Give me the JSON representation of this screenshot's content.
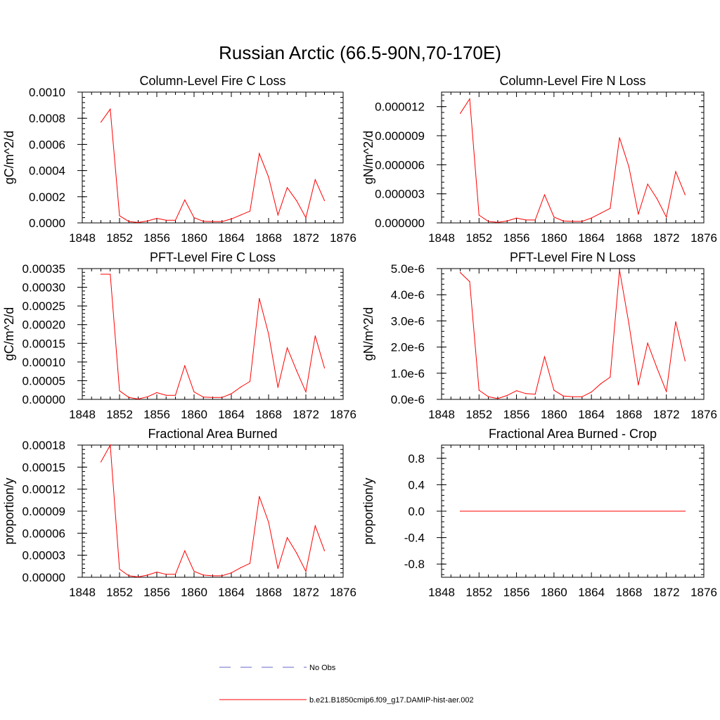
{
  "figure": {
    "title": "Russian Arctic (66.5-90N,70-170E)"
  },
  "legend": {
    "entries": [
      {
        "label": "No Obs",
        "color": "#6666cc",
        "style": "dashed"
      },
      {
        "label": "b.e21.B1850cmip6.f09_g17.DAMIP-hist-aer.002",
        "color": "#ff0000",
        "style": "solid"
      }
    ]
  },
  "chart_data": [
    {
      "type": "line",
      "title": "Column-Level Fire C Loss",
      "ylabel": "gC/m^2/d",
      "xlim": [
        1848,
        1876
      ],
      "xticks": [
        "1848",
        "1852",
        "1856",
        "1860",
        "1864",
        "1868",
        "1872",
        "1876"
      ],
      "ylim": [
        0,
        0.001
      ],
      "yticks": [
        "0.0000",
        "0.0002",
        "0.0004",
        "0.0006",
        "0.0008",
        "0.0010"
      ],
      "series": [
        {
          "color": "#ff0000",
          "x": [
            1850,
            1851,
            1852,
            1853,
            1854,
            1855,
            1856,
            1857,
            1858,
            1859,
            1860,
            1861,
            1862,
            1863,
            1864,
            1865,
            1866,
            1867,
            1868,
            1869,
            1870,
            1871,
            1872,
            1873,
            1874
          ],
          "values": [
            0.00077,
            0.00087,
            5.5e-05,
            1e-05,
            3e-06,
            1.5e-05,
            3.5e-05,
            2e-05,
            2e-05,
            0.000175,
            4e-05,
            1.2e-05,
            1e-05,
            1e-05,
            3e-05,
            6e-05,
            9e-05,
            0.00053,
            0.00035,
            6e-05,
            0.00027,
            0.00017,
            4e-05,
            0.00033,
            0.00017
          ]
        }
      ]
    },
    {
      "type": "line",
      "title": "Column-Level Fire N Loss",
      "ylabel": "gN/m^2/d",
      "xlim": [
        1848,
        1876
      ],
      "xticks": [
        "1848",
        "1852",
        "1856",
        "1860",
        "1864",
        "1868",
        "1872",
        "1876"
      ],
      "ylim": [
        0,
        1.35e-05
      ],
      "yticks": [
        "0.000000",
        "0.000003",
        "0.000006",
        "0.000009",
        "0.000012"
      ],
      "series": [
        {
          "color": "#ff0000",
          "x": [
            1850,
            1851,
            1852,
            1853,
            1854,
            1855,
            1856,
            1857,
            1858,
            1859,
            1860,
            1861,
            1862,
            1863,
            1864,
            1865,
            1866,
            1867,
            1868,
            1869,
            1870,
            1871,
            1872,
            1873,
            1874
          ],
          "values": [
            1.13e-05,
            1.28e-05,
            8e-07,
            1.5e-07,
            5e-08,
            2e-07,
            5e-07,
            3e-07,
            3e-07,
            2.9e-06,
            6e-07,
            2e-07,
            1.5e-07,
            1.5e-07,
            5e-07,
            1e-06,
            1.5e-06,
            8.8e-06,
            5.8e-06,
            9e-07,
            4e-06,
            2.5e-06,
            6e-07,
            5.3e-06,
            2.9e-06
          ]
        }
      ]
    },
    {
      "type": "line",
      "title": "PFT-Level Fire C Loss",
      "ylabel": "gC/m^2/d",
      "xlim": [
        1848,
        1876
      ],
      "xticks": [
        "1848",
        "1852",
        "1856",
        "1860",
        "1864",
        "1868",
        "1872",
        "1876"
      ],
      "ylim": [
        0,
        0.00035
      ],
      "yticks": [
        "0.00000",
        "0.00005",
        "0.00010",
        "0.00015",
        "0.00020",
        "0.00025",
        "0.00030",
        "0.00035"
      ],
      "series": [
        {
          "color": "#ff0000",
          "x": [
            1850,
            1851,
            1852,
            1853,
            1854,
            1855,
            1856,
            1857,
            1858,
            1859,
            1860,
            1861,
            1862,
            1863,
            1864,
            1865,
            1866,
            1867,
            1868,
            1869,
            1870,
            1871,
            1872,
            1873,
            1874
          ],
          "values": [
            0.000335,
            0.000335,
            2.3e-05,
            5e-06,
            1e-06,
            7e-06,
            1.8e-05,
            1.1e-05,
            1.1e-05,
            9e-05,
            2e-05,
            6e-06,
            5e-06,
            5e-06,
            1.5e-05,
            3.3e-05,
            4.8e-05,
            0.00027,
            0.000175,
            3.2e-05,
            0.000138,
            7.7e-05,
            2e-05,
            0.00017,
            8.4e-05
          ]
        }
      ]
    },
    {
      "type": "line",
      "title": "PFT-Level Fire N Loss",
      "ylabel": "gN/m^2/d",
      "xlim": [
        1848,
        1876
      ],
      "xticks": [
        "1848",
        "1852",
        "1856",
        "1860",
        "1864",
        "1868",
        "1872",
        "1876"
      ],
      "ylim": [
        0,
        5e-06
      ],
      "yticks": [
        "0.0e-6",
        "1.0e-6",
        "2.0e-6",
        "3.0e-6",
        "4.0e-6",
        "5.0e-6"
      ],
      "series": [
        {
          "color": "#ff0000",
          "x": [
            1850,
            1851,
            1852,
            1853,
            1854,
            1855,
            1856,
            1857,
            1858,
            1859,
            1860,
            1861,
            1862,
            1863,
            1864,
            1865,
            1866,
            1867,
            1868,
            1869,
            1870,
            1871,
            1872,
            1873,
            1874
          ],
          "values": [
            4.85e-06,
            4.5e-06,
            3.5e-07,
            1e-07,
            3e-08,
            1.5e-07,
            3.3e-07,
            2.2e-07,
            2e-07,
            1.63e-06,
            3.5e-07,
            1.3e-07,
            1e-07,
            1e-07,
            2.8e-07,
            6e-07,
            8.5e-07,
            4.95e-06,
            2.9e-06,
            5.5e-07,
            2.15e-06,
            1.2e-06,
            3e-07,
            2.97e-06,
            1.47e-06
          ]
        }
      ]
    },
    {
      "type": "line",
      "title": "Fractional Area Burned",
      "ylabel": "proportion/y",
      "xlim": [
        1848,
        1876
      ],
      "xticks": [
        "1848",
        "1852",
        "1856",
        "1860",
        "1864",
        "1868",
        "1872",
        "1876"
      ],
      "ylim": [
        0,
        0.00018
      ],
      "yticks": [
        "0.00000",
        "0.00003",
        "0.00006",
        "0.00009",
        "0.00012",
        "0.00015",
        "0.00018"
      ],
      "series": [
        {
          "color": "#ff0000",
          "x": [
            1850,
            1851,
            1852,
            1853,
            1854,
            1855,
            1856,
            1857,
            1858,
            1859,
            1860,
            1861,
            1862,
            1863,
            1864,
            1865,
            1866,
            1867,
            1868,
            1869,
            1870,
            1871,
            1872,
            1873,
            1874
          ],
          "values": [
            0.000157,
            0.00018,
            1.1e-05,
            2e-06,
            5e-07,
            3e-06,
            7e-06,
            4e-06,
            4e-06,
            3.6e-05,
            8e-06,
            3e-06,
            2e-06,
            2e-06,
            6e-06,
            1.3e-05,
            1.9e-05,
            0.00011,
            7.5e-05,
            1.2e-05,
            5.4e-05,
            3.3e-05,
            8e-06,
            7e-05,
            3.6e-05
          ]
        }
      ]
    },
    {
      "type": "line",
      "title": "Fractional Area Burned - Crop",
      "ylabel": "proportion/y",
      "xlim": [
        1848,
        1876
      ],
      "xticks": [
        "1848",
        "1852",
        "1856",
        "1860",
        "1864",
        "1868",
        "1872",
        "1876"
      ],
      "ylim": [
        -1,
        1
      ],
      "yticks": [
        "-0.8",
        "-0.4",
        "0.0",
        "0.4",
        "0.8"
      ],
      "ytick_values": [
        -0.8,
        -0.4,
        0,
        0.4,
        0.8
      ],
      "series": [
        {
          "color": "#ff0000",
          "x": [
            1850,
            1874
          ],
          "values": [
            0,
            0
          ]
        }
      ]
    }
  ]
}
